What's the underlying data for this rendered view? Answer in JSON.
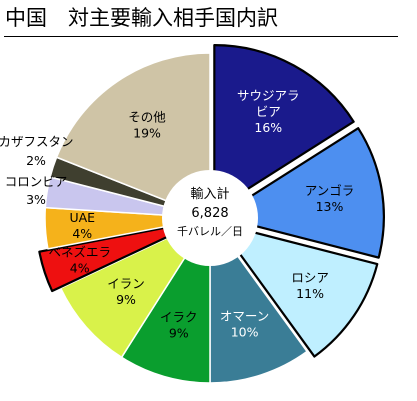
{
  "chart_data": {
    "type": "pie",
    "title": "中国　対主要輸入相手国内訳",
    "center_label": {
      "line1": "輸入計",
      "line2": "6,828",
      "line3": "千バレル／日"
    },
    "slices": [
      {
        "label": "サウジアラ\nビア",
        "value": 16,
        "value_label": "16%",
        "color": "#1a1a8c",
        "text_color": "#ffffff",
        "exploded": true
      },
      {
        "label": "アンゴラ",
        "value": 13,
        "value_label": "13%",
        "color": "#4d8ff0",
        "text_color": "#000000",
        "exploded": true
      },
      {
        "label": "ロシア",
        "value": 11,
        "value_label": "11%",
        "color": "#bfefff",
        "text_color": "#000000",
        "exploded": true
      },
      {
        "label": "オマーン",
        "value": 10,
        "value_label": "10%",
        "color": "#3a7d96",
        "text_color": "#ffffff",
        "exploded": false
      },
      {
        "label": "イラク",
        "value": 9,
        "value_label": "9%",
        "color": "#0a9e2e",
        "text_color": "#000000",
        "exploded": false
      },
      {
        "label": "イラン",
        "value": 9,
        "value_label": "9%",
        "color": "#d9f24a",
        "text_color": "#000000",
        "exploded": false
      },
      {
        "label": "ベネズエラ",
        "value": 4,
        "value_label": "4%",
        "color": "#ee1010",
        "text_color": "#000000",
        "exploded": true
      },
      {
        "label": "UAE",
        "value": 4,
        "value_label": "4%",
        "color": "#f5b21b",
        "text_color": "#000000",
        "exploded": false
      },
      {
        "label": "コロンビア",
        "value": 3,
        "value_label": "3%",
        "color": "#c9c6ee",
        "text_color": "#000000",
        "exploded": false
      },
      {
        "label": "カザフスタン",
        "value": 2,
        "value_label": "2%",
        "color": "#3f3f2f",
        "text_color": "#000000",
        "exploded": false
      },
      {
        "label": "その他",
        "value": 19,
        "value_label": "19%",
        "color": "#cfc4a6",
        "text_color": "#000000",
        "exploded": false
      }
    ]
  }
}
